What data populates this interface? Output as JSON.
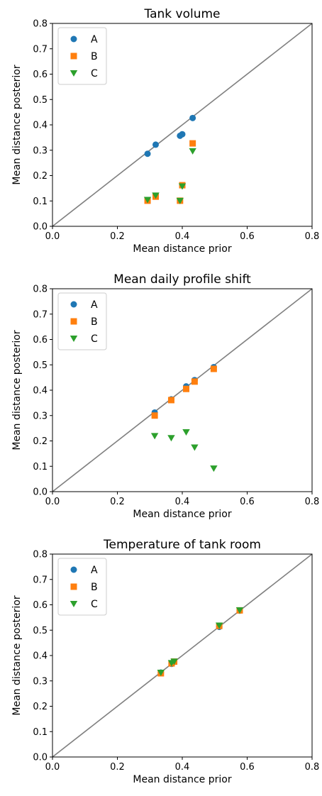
{
  "chart_data": [
    {
      "type": "scatter",
      "title": "Tank volume",
      "xlabel": "Mean distance prior",
      "ylabel": "Mean distance posterior",
      "xlim": [
        0.0,
        0.8
      ],
      "ylim": [
        0.0,
        0.8
      ],
      "xticks": [
        "0.0",
        "0.2",
        "0.4",
        "0.6",
        "0.8"
      ],
      "yticks": [
        "0.0",
        "0.1",
        "0.2",
        "0.3",
        "0.4",
        "0.5",
        "0.6",
        "0.7",
        "0.8"
      ],
      "diagonal": true,
      "grid": false,
      "legend_position": "top-left",
      "series": [
        {
          "name": "A",
          "marker": "circle",
          "color": "#1f77b4",
          "x": [
            0.293,
            0.318,
            0.393,
            0.4,
            0.432
          ],
          "y": [
            0.286,
            0.322,
            0.357,
            0.363,
            0.427
          ]
        },
        {
          "name": "B",
          "marker": "square",
          "color": "#ff7f0e",
          "x": [
            0.293,
            0.318,
            0.393,
            0.4,
            0.432
          ],
          "y": [
            0.101,
            0.117,
            0.101,
            0.162,
            0.327
          ]
        },
        {
          "name": "C",
          "marker": "triangle-down",
          "color": "#2ca02c",
          "x": [
            0.293,
            0.318,
            0.393,
            0.4,
            0.432
          ],
          "y": [
            0.105,
            0.122,
            0.101,
            0.158,
            0.297
          ]
        }
      ]
    },
    {
      "type": "scatter",
      "title": "Mean daily profile shift",
      "xlabel": "Mean distance prior",
      "ylabel": "Mean distance posterior",
      "xlim": [
        0.0,
        0.8
      ],
      "ylim": [
        0.0,
        0.8
      ],
      "xticks": [
        "0.0",
        "0.2",
        "0.4",
        "0.6",
        "0.8"
      ],
      "yticks": [
        "0.0",
        "0.1",
        "0.2",
        "0.3",
        "0.4",
        "0.5",
        "0.6",
        "0.7",
        "0.8"
      ],
      "diagonal": true,
      "grid": false,
      "legend_position": "top-left",
      "series": [
        {
          "name": "A",
          "marker": "circle",
          "color": "#1f77b4",
          "x": [
            0.315,
            0.366,
            0.412,
            0.438,
            0.497
          ],
          "y": [
            0.312,
            0.364,
            0.415,
            0.44,
            0.491
          ]
        },
        {
          "name": "B",
          "marker": "square",
          "color": "#ff7f0e",
          "x": [
            0.315,
            0.366,
            0.412,
            0.438,
            0.497
          ],
          "y": [
            0.3,
            0.361,
            0.405,
            0.434,
            0.484
          ]
        },
        {
          "name": "C",
          "marker": "triangle-down",
          "color": "#2ca02c",
          "x": [
            0.315,
            0.366,
            0.412,
            0.438,
            0.497
          ],
          "y": [
            0.22,
            0.212,
            0.235,
            0.175,
            0.092
          ]
        }
      ]
    },
    {
      "type": "scatter",
      "title": "Temperature of tank room",
      "xlabel": "Mean distance prior",
      "ylabel": "Mean distance posterior",
      "xlim": [
        0.0,
        0.8
      ],
      "ylim": [
        0.0,
        0.8
      ],
      "xticks": [
        "0.0",
        "0.2",
        "0.4",
        "0.6",
        "0.8"
      ],
      "yticks": [
        "0.0",
        "0.1",
        "0.2",
        "0.3",
        "0.4",
        "0.5",
        "0.6",
        "0.7",
        "0.8"
      ],
      "diagonal": true,
      "grid": false,
      "legend_position": "top-left",
      "series": [
        {
          "name": "A",
          "marker": "circle",
          "color": "#1f77b4",
          "x": [
            0.334,
            0.367,
            0.375,
            0.514,
            0.577
          ],
          "y": [
            0.333,
            0.367,
            0.375,
            0.513,
            0.577
          ]
        },
        {
          "name": "B",
          "marker": "square",
          "color": "#ff7f0e",
          "x": [
            0.334,
            0.367,
            0.375,
            0.514,
            0.577
          ],
          "y": [
            0.33,
            0.369,
            0.376,
            0.517,
            0.578
          ]
        },
        {
          "name": "C",
          "marker": "triangle-down",
          "color": "#2ca02c",
          "x": [
            0.334,
            0.367,
            0.375,
            0.514,
            0.577
          ],
          "y": [
            0.333,
            0.371,
            0.377,
            0.519,
            0.579
          ]
        }
      ]
    }
  ]
}
